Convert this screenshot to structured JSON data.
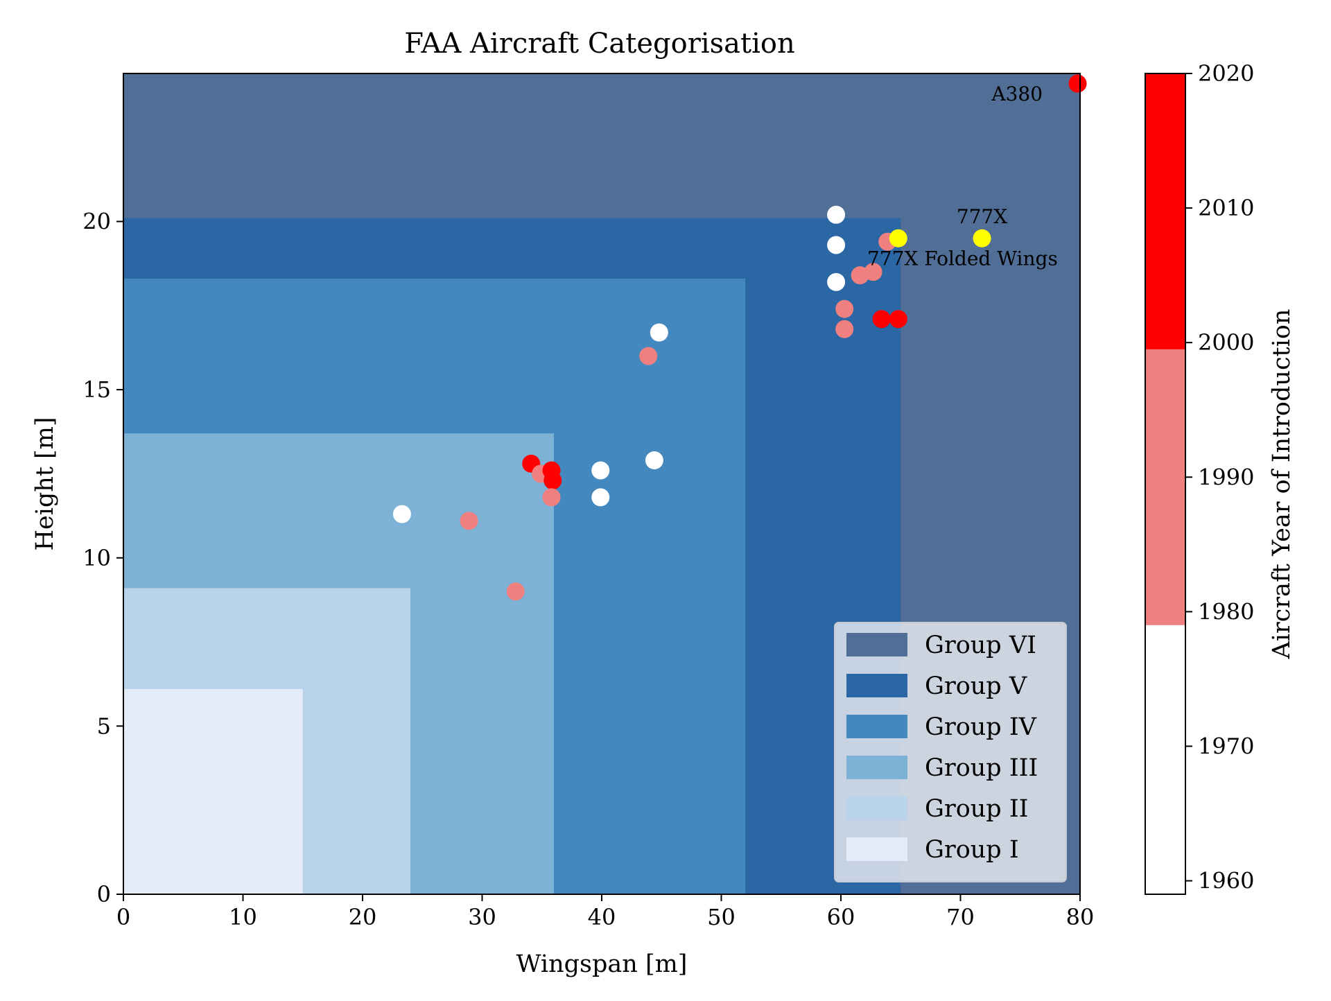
{
  "chart_data": {
    "type": "scatter",
    "title": "FAA Aircraft Categorisation",
    "xlabel": "Wingspan [m]",
    "ylabel": "Height [m]",
    "xlim": [
      0,
      80
    ],
    "ylim": [
      0,
      24.4
    ],
    "xticks": [
      0,
      10,
      20,
      30,
      40,
      50,
      60,
      70,
      80
    ],
    "yticks": [
      0,
      5,
      10,
      15,
      20
    ],
    "grid": false,
    "legend_position": "bottom-right",
    "groups": [
      {
        "name": "Group VI",
        "max_wingspan": 80,
        "max_height": 24.4,
        "color": "#516f96"
      },
      {
        "name": "Group V",
        "max_wingspan": 65,
        "max_height": 20.1,
        "color": "#2b67a5"
      },
      {
        "name": "Group IV",
        "max_wingspan": 52,
        "max_height": 18.3,
        "color": "#4389c0"
      },
      {
        "name": "Group III",
        "max_wingspan": 36,
        "max_height": 13.7,
        "color": "#7db2d6"
      },
      {
        "name": "Group II",
        "max_wingspan": 24,
        "max_height": 9.1,
        "color": "#b9d3ea"
      },
      {
        "name": "Group I",
        "max_wingspan": 15,
        "max_height": 6.1,
        "color": "#e4edf7"
      }
    ],
    "points": [
      {
        "x": 23.3,
        "y": 11.3,
        "year": 1968
      },
      {
        "x": 28.9,
        "y": 11.1,
        "year": 1985
      },
      {
        "x": 32.8,
        "y": 9.0,
        "year": 1985
      },
      {
        "x": 34.1,
        "y": 12.8,
        "year": 2005
      },
      {
        "x": 34.9,
        "y": 12.5,
        "year": 1988
      },
      {
        "x": 35.8,
        "y": 12.6,
        "year": 2008
      },
      {
        "x": 35.9,
        "y": 12.3,
        "year": 2010
      },
      {
        "x": 35.8,
        "y": 11.8,
        "year": 1990
      },
      {
        "x": 39.9,
        "y": 12.6,
        "year": 1970
      },
      {
        "x": 39.9,
        "y": 11.8,
        "year": 1975
      },
      {
        "x": 43.9,
        "y": 16.0,
        "year": 1992
      },
      {
        "x": 44.8,
        "y": 16.7,
        "year": 1988
      },
      {
        "x": 44.8,
        "y": 16.7,
        "year": 1972
      },
      {
        "x": 44.4,
        "y": 12.9,
        "year": 1975
      },
      {
        "x": 59.6,
        "y": 20.2,
        "year": 1970
      },
      {
        "x": 59.6,
        "y": 19.3,
        "year": 1972
      },
      {
        "x": 59.6,
        "y": 18.2,
        "year": 1976
      },
      {
        "x": 60.3,
        "y": 17.4,
        "year": 1993
      },
      {
        "x": 60.3,
        "y": 16.8,
        "year": 1992
      },
      {
        "x": 61.6,
        "y": 18.4,
        "year": 1995
      },
      {
        "x": 62.7,
        "y": 18.5,
        "year": 1998
      },
      {
        "x": 63.9,
        "y": 19.4,
        "year": 1995
      },
      {
        "x": 63.4,
        "y": 17.1,
        "year": 2012
      },
      {
        "x": 64.8,
        "y": 17.1,
        "year": 2015
      },
      {
        "x": 64.8,
        "y": 19.5,
        "year": 2020,
        "special": true
      },
      {
        "x": 71.8,
        "y": 19.5,
        "year": 2020,
        "special": true
      },
      {
        "x": 79.8,
        "y": 24.1,
        "year": 2007
      }
    ],
    "annotations": [
      {
        "text": "A380",
        "x": 72.6,
        "y": 23.6
      },
      {
        "text": "777X",
        "x": 71.8,
        "y": 19.95
      },
      {
        "text": "777X Folded Wings",
        "x": 62.2,
        "y": 18.7
      }
    ],
    "colorbar": {
      "label": "Aircraft Year of Introduction",
      "range": [
        1959,
        2020
      ],
      "ticks": [
        1960,
        1970,
        1980,
        1990,
        2000,
        2010,
        2020
      ],
      "bands": [
        {
          "from": 1959,
          "to": 1979,
          "color": "#ffffff"
        },
        {
          "from": 1979,
          "to": 1999.5,
          "color": "#f08080"
        },
        {
          "from": 1999.5,
          "to": 2020,
          "color": "#ff0000"
        }
      ]
    },
    "special_color": "#ffff00"
  }
}
